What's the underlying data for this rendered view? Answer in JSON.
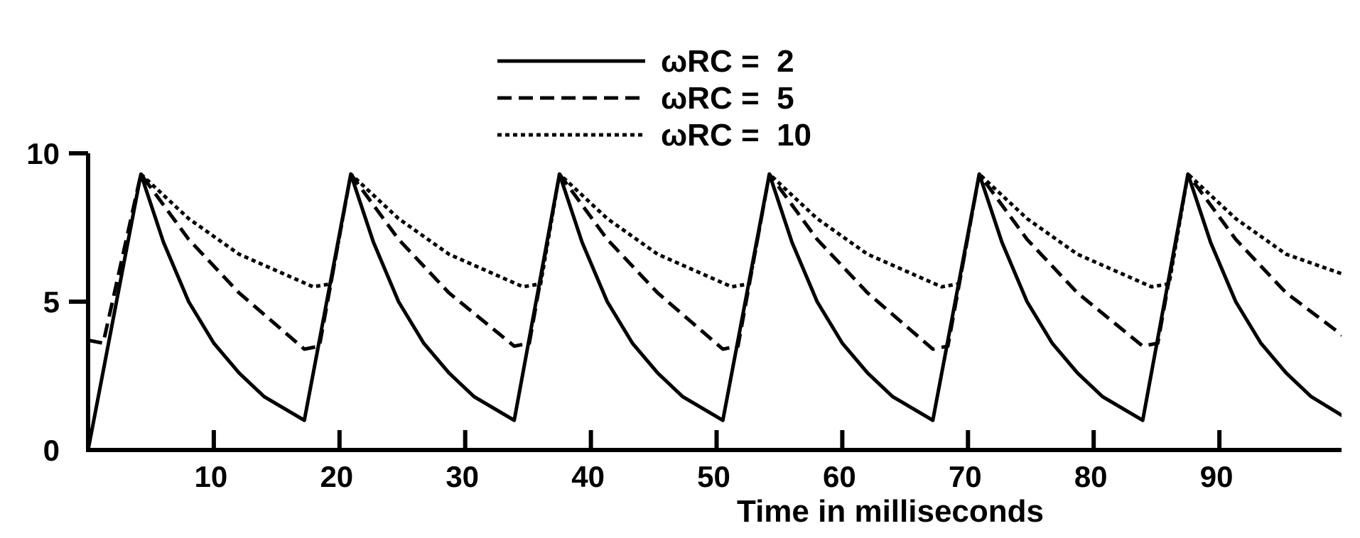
{
  "chart_data": {
    "type": "line",
    "xlabel": "Time in milliseconds",
    "ylabel": "",
    "xlim": [
      0,
      100
    ],
    "ylim": [
      0,
      10
    ],
    "x_ticks": [
      10,
      20,
      30,
      40,
      50,
      60,
      70,
      80,
      90
    ],
    "y_ticks": [
      0,
      5,
      10
    ],
    "x_tick_labels": [
      "10",
      "20",
      "30",
      "40",
      "50",
      "60",
      "70",
      "80",
      "90"
    ],
    "y_tick_labels": [
      "0",
      "5",
      "10"
    ],
    "grid": false,
    "legend_position": "top",
    "period_ms": 16.67,
    "peak_x": [
      4.2,
      20.9,
      37.5,
      54.2,
      70.9,
      87.5
    ],
    "peak_value": 9.3,
    "series": [
      {
        "name": "ωRC = 2",
        "legend_label": "ωRC =  2",
        "line_style": "solid",
        "x": [
          0,
          4.2,
          6,
          8,
          10,
          12,
          14,
          17.2,
          20.9,
          22.7,
          24.7,
          26.7,
          28.7,
          30.7,
          33.9,
          37.5,
          39.3,
          41.3,
          43.3,
          45.3,
          47.3,
          50.5,
          54.2,
          56,
          58,
          60,
          62,
          64,
          67.2,
          70.9,
          72.7,
          74.7,
          76.7,
          78.7,
          80.7,
          83.9,
          87.5,
          89.3,
          91.3,
          93.3,
          95.3,
          97.3,
          100
        ],
        "values": [
          0,
          9.3,
          7.0,
          5.0,
          3.6,
          2.6,
          1.8,
          1.0,
          9.3,
          7.0,
          5.0,
          3.6,
          2.6,
          1.8,
          1.0,
          9.3,
          7.0,
          5.0,
          3.6,
          2.6,
          1.8,
          1.0,
          9.3,
          7.0,
          5.0,
          3.6,
          2.6,
          1.8,
          1.0,
          9.3,
          7.0,
          5.0,
          3.6,
          2.6,
          1.8,
          1.0,
          9.3,
          7.0,
          5.0,
          3.6,
          2.6,
          1.8,
          1.1
        ]
      },
      {
        "name": "ωRC = 5",
        "legend_label": "ωRC =  5",
        "line_style": "dashed",
        "x": [
          0,
          1.2,
          4.2,
          8,
          12,
          17.2,
          18.4,
          20.9,
          24.7,
          28.7,
          33.9,
          35.1,
          37.5,
          41.3,
          45.3,
          50.5,
          51.7,
          54.2,
          58,
          62,
          67.2,
          68.4,
          70.9,
          74.7,
          78.7,
          83.9,
          85.1,
          87.5,
          91.3,
          95.3,
          100
        ],
        "values": [
          3.7,
          3.6,
          9.3,
          7.1,
          5.3,
          3.4,
          3.5,
          9.3,
          7.1,
          5.3,
          3.5,
          3.6,
          9.3,
          7.1,
          5.3,
          3.4,
          3.5,
          9.3,
          7.1,
          5.3,
          3.4,
          3.5,
          9.3,
          7.1,
          5.3,
          3.5,
          3.6,
          9.3,
          7.1,
          5.3,
          3.8
        ]
      },
      {
        "name": "ωRC = 10",
        "legend_label": "ωRC =  10",
        "line_style": "dotted",
        "x": [
          4.2,
          8,
          12,
          17.9,
          19.3,
          20.9,
          24.7,
          28.7,
          34.6,
          36.0,
          37.5,
          41.3,
          45.3,
          51.2,
          52.6,
          54.2,
          58,
          62,
          67.9,
          69.3,
          70.9,
          74.7,
          78.7,
          84.6,
          86.0,
          87.5,
          91.3,
          95.3,
          100
        ],
        "values": [
          9.3,
          7.8,
          6.6,
          5.5,
          5.6,
          9.3,
          7.8,
          6.6,
          5.5,
          5.6,
          9.3,
          7.8,
          6.6,
          5.5,
          5.6,
          9.3,
          7.8,
          6.6,
          5.5,
          5.6,
          9.3,
          7.8,
          6.6,
          5.5,
          5.6,
          9.3,
          7.8,
          6.6,
          5.9
        ]
      }
    ]
  }
}
